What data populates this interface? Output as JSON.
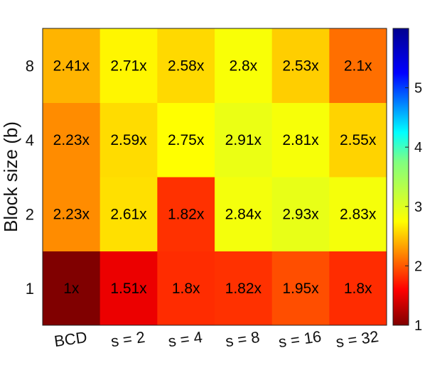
{
  "chart_data": {
    "type": "heatmap",
    "title": "",
    "xlabel": "",
    "ylabel": "Block size (b)",
    "x_categories": [
      "BCD",
      "s = 2",
      "s = 4",
      "s = 8",
      "s = 16",
      "s = 32"
    ],
    "y_categories": [
      "1",
      "2",
      "4",
      "8"
    ],
    "values": [
      [
        1.0,
        1.51,
        1.8,
        1.82,
        1.95,
        1.8
      ],
      [
        2.23,
        2.61,
        1.82,
        2.84,
        2.93,
        2.83
      ],
      [
        2.23,
        2.59,
        2.75,
        2.91,
        2.81,
        2.55
      ],
      [
        2.41,
        2.71,
        2.58,
        2.8,
        2.53,
        2.1
      ]
    ],
    "cell_labels": [
      [
        "1x",
        "1.51x",
        "1.8x",
        "1.82x",
        "1.95x",
        "1.8x"
      ],
      [
        "2.23x",
        "2.61x",
        "1.82x",
        "2.84x",
        "2.93x",
        "2.83x"
      ],
      [
        "2.23x",
        "2.59x",
        "2.75x",
        "2.91x",
        "2.81x",
        "2.55x"
      ],
      [
        "2.41x",
        "2.71x",
        "2.58x",
        "2.8x",
        "2.53x",
        "2.1x"
      ]
    ],
    "colorbar": {
      "range": [
        1,
        6
      ],
      "ticks": [
        1,
        2,
        3,
        4,
        5
      ],
      "tick_labels": [
        "1",
        "2",
        "3",
        "4",
        "5"
      ],
      "colormap": "jet-reversed"
    },
    "grid": false
  }
}
